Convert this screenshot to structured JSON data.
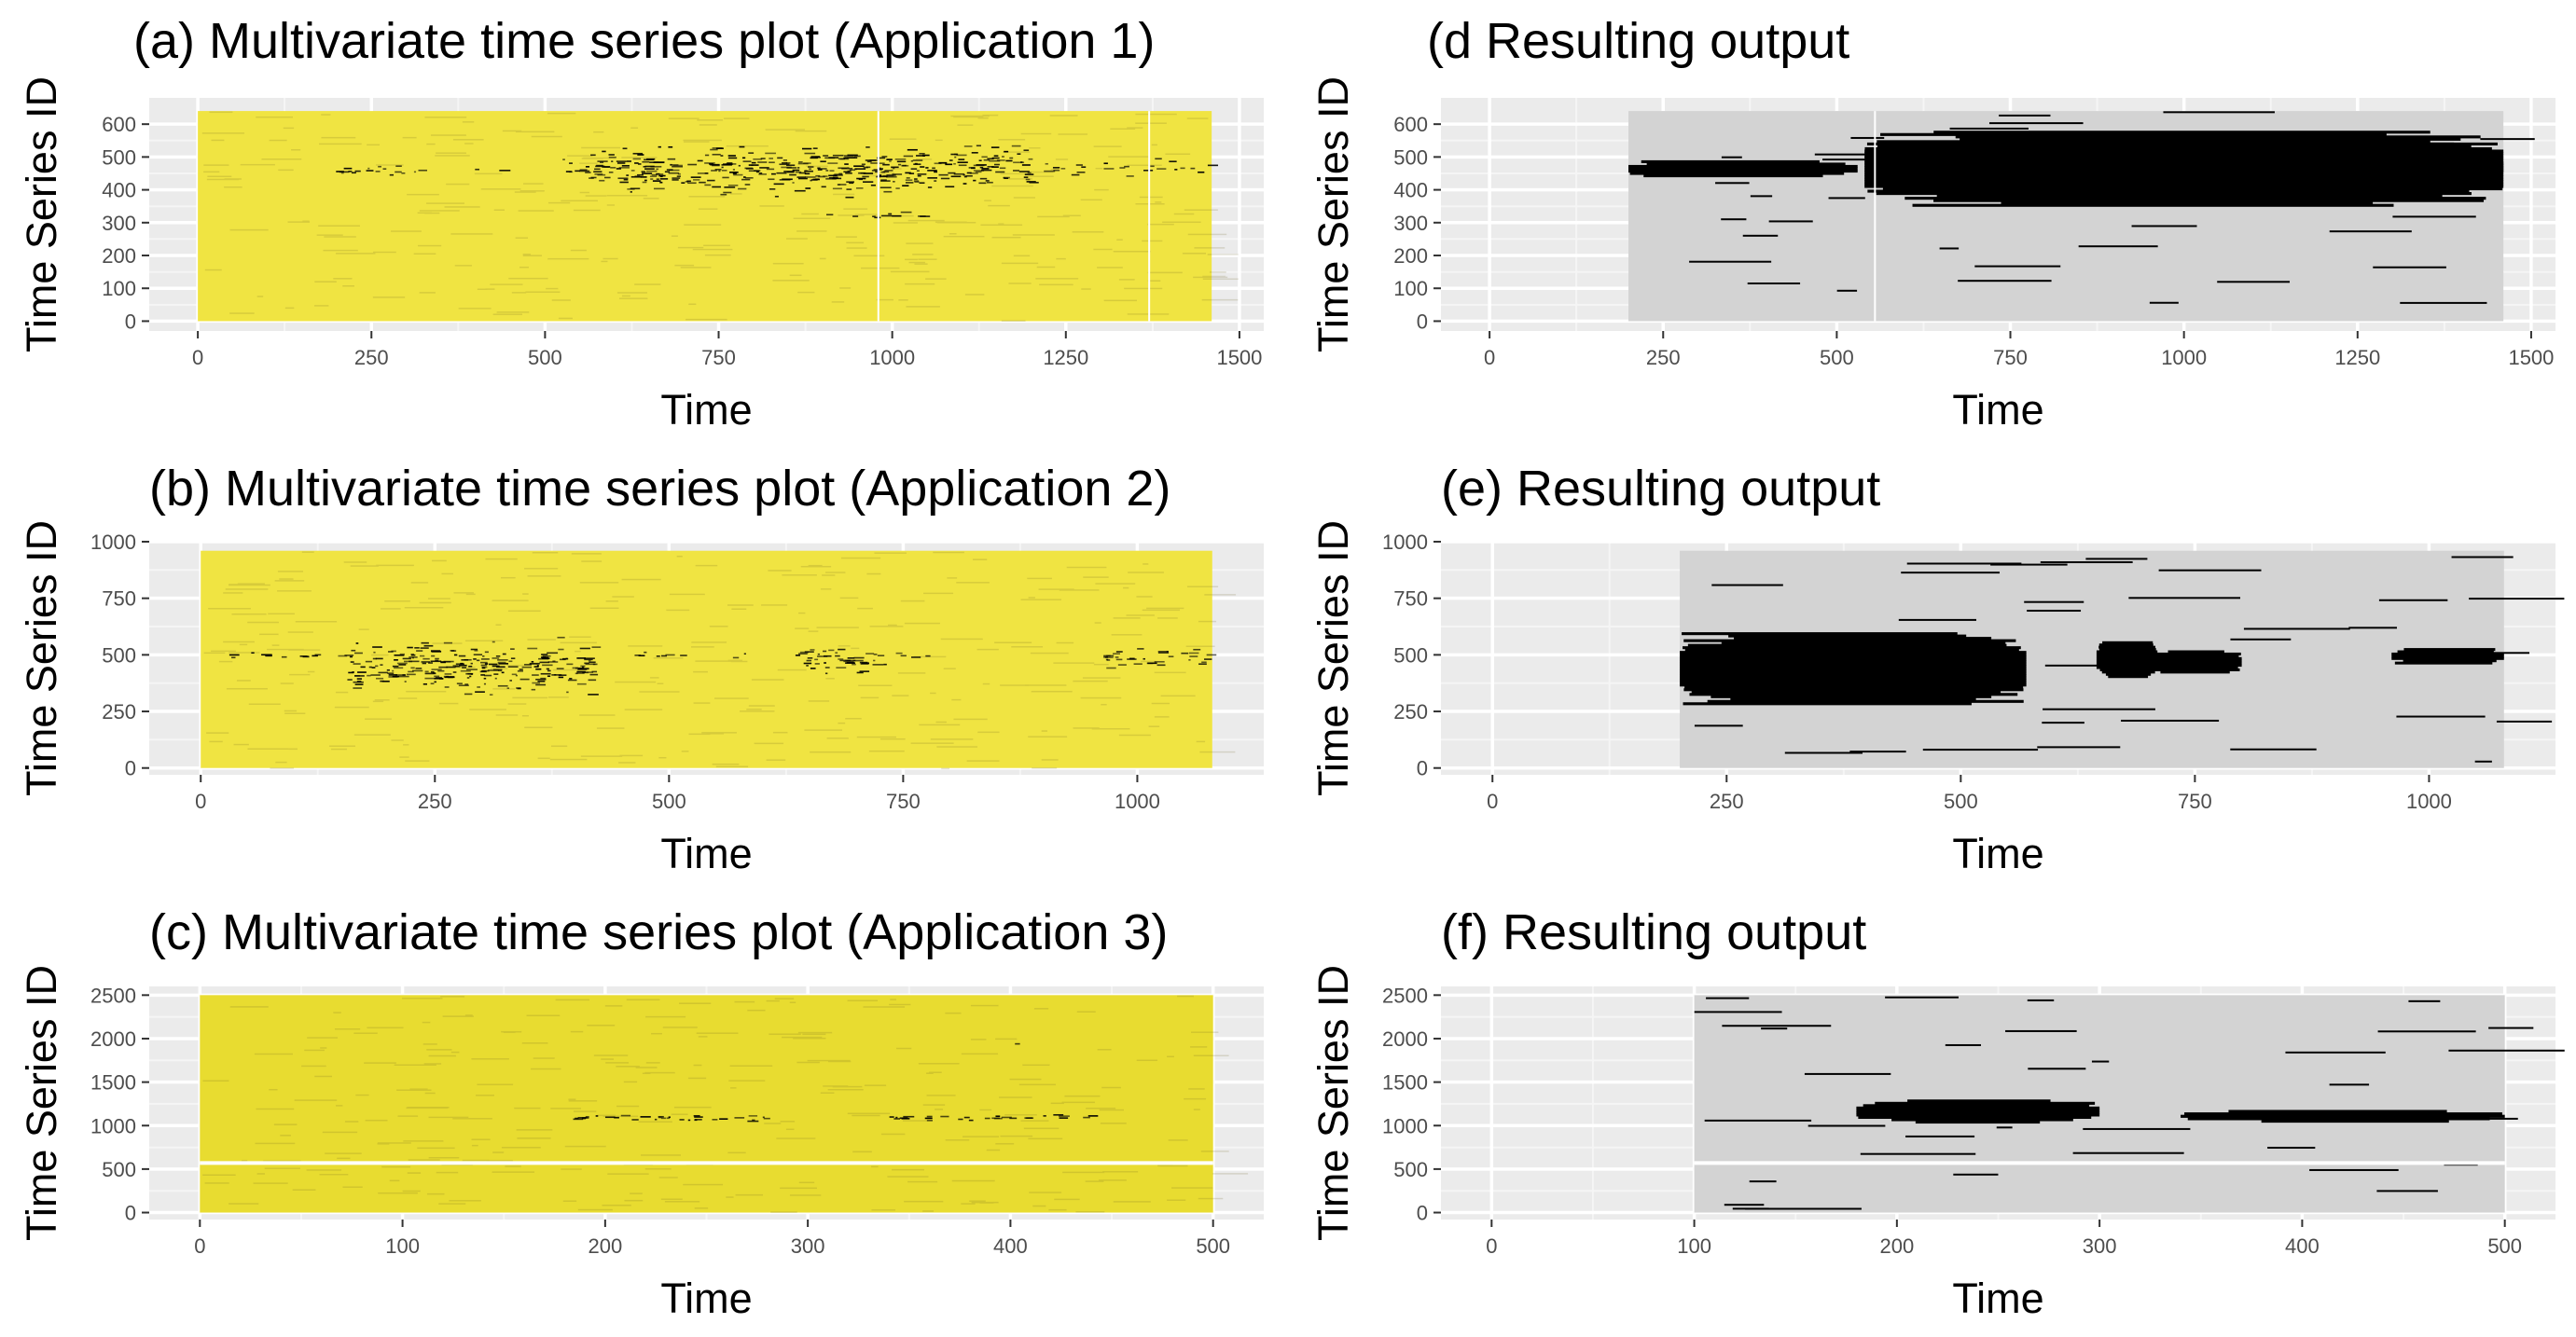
{
  "chart_data": [
    {
      "panel": "a",
      "type": "heatmap",
      "title": "(a) Multivariate time series plot (Application 1)",
      "xlabel": "Time",
      "ylabel": "Time Series ID",
      "xlim": [
        -70,
        1535
      ],
      "ylim": [
        -30,
        680
      ],
      "xticks": [
        0,
        250,
        500,
        750,
        1000,
        1250,
        1500
      ],
      "yticks": [
        0,
        100,
        200,
        300,
        400,
        500,
        600
      ],
      "extent": {
        "x": [
          0,
          1460
        ],
        "y": [
          0,
          640
        ]
      },
      "fill_color": "#f0e442",
      "ink_color": "#000000",
      "gaps_x": [
        980,
        1370
      ],
      "anomalies": [
        {
          "x": [
            195,
            300
          ],
          "y": [
            440,
            480
          ],
          "density": 0.85
        },
        {
          "x": [
            300,
            450
          ],
          "y": [
            450,
            470
          ],
          "density": 0.3
        },
        {
          "x": [
            525,
            610
          ],
          "y": [
            400,
            540
          ],
          "density": 0.7
        },
        {
          "x": [
            610,
            1000
          ],
          "y": [
            360,
            560
          ],
          "density": 0.8
        },
        {
          "x": [
            1000,
            1200
          ],
          "y": [
            380,
            560
          ],
          "density": 0.75
        },
        {
          "x": [
            1200,
            1460
          ],
          "y": [
            440,
            500
          ],
          "density": 0.35
        },
        {
          "x": [
            900,
            1100
          ],
          "y": [
            310,
            340
          ],
          "density": 0.4
        }
      ]
    },
    {
      "panel": "d",
      "type": "heatmap",
      "title": "(d Resulting output",
      "xlabel": "Time",
      "ylabel": "Time Series ID",
      "xlim": [
        -70,
        1535
      ],
      "ylim": [
        -30,
        680
      ],
      "xticks": [
        0,
        250,
        500,
        750,
        1000,
        1250,
        1500
      ],
      "yticks": [
        0,
        100,
        200,
        300,
        400,
        500,
        600
      ],
      "extent": {
        "x": [
          200,
          1460
        ],
        "y": [
          0,
          640
        ]
      },
      "fill_color": "#d3d3d3",
      "ink_color": "#000000",
      "gaps_x": [
        555
      ],
      "anomalies": [
        {
          "x": [
            200,
            530
          ],
          "y": [
            440,
            490
          ],
          "density": 1.0
        },
        {
          "x": [
            540,
            1460
          ],
          "y": [
            350,
            580
          ],
          "density": 1.0
        },
        {
          "x": [
            1200,
            1460
          ],
          "y": [
            440,
            500
          ],
          "density": 1.0
        }
      ]
    },
    {
      "panel": "b",
      "type": "heatmap",
      "title": "(b) Multivariate time series plot (Application 2)",
      "xlabel": "Time",
      "ylabel": "Time Series ID",
      "xlim": [
        -55,
        1135
      ],
      "ylim": [
        -30,
        1000
      ],
      "xticks": [
        0,
        250,
        500,
        750,
        1000
      ],
      "yticks": [
        0,
        250,
        500,
        750,
        1000
      ],
      "extent": {
        "x": [
          0,
          1080
        ],
        "y": [
          0,
          960
        ]
      },
      "fill_color": "#f0e442",
      "ink_color": "#000000",
      "gaps_x": [],
      "anomalies": [
        {
          "x": [
            25,
            160
          ],
          "y": [
            480,
            520
          ],
          "density": 0.6
        },
        {
          "x": [
            155,
            420
          ],
          "y": [
            300,
            600
          ],
          "density": 0.8
        },
        {
          "x": [
            420,
            600
          ],
          "y": [
            480,
            520
          ],
          "density": 0.3
        },
        {
          "x": [
            635,
            730
          ],
          "y": [
            400,
            560
          ],
          "density": 0.75
        },
        {
          "x": [
            730,
            800
          ],
          "y": [
            470,
            520
          ],
          "density": 0.3
        },
        {
          "x": [
            960,
            1080
          ],
          "y": [
            440,
            540
          ],
          "density": 0.7
        }
      ]
    },
    {
      "panel": "e",
      "type": "heatmap",
      "title": "(e) Resulting output",
      "xlabel": "Time",
      "ylabel": "Time Series ID",
      "xlim": [
        -55,
        1135
      ],
      "ylim": [
        -30,
        1000
      ],
      "xticks": [
        0,
        250,
        500,
        750,
        1000
      ],
      "yticks": [
        0,
        250,
        500,
        750,
        1000
      ],
      "extent": {
        "x": [
          200,
          1080
        ],
        "y": [
          0,
          960
        ]
      },
      "fill_color": "#d3d3d3",
      "ink_color": "#000000",
      "gaps_x": [],
      "anomalies": [
        {
          "x": [
            200,
            570
          ],
          "y": [
            280,
            600
          ],
          "density": 1.0
        },
        {
          "x": [
            645,
            710
          ],
          "y": [
            400,
            560
          ],
          "density": 1.0
        },
        {
          "x": [
            700,
            800
          ],
          "y": [
            420,
            520
          ],
          "density": 1.0
        },
        {
          "x": [
            960,
            1080
          ],
          "y": [
            460,
            530
          ],
          "density": 1.0
        }
      ]
    },
    {
      "panel": "c",
      "type": "heatmap",
      "title": "(c) Multivariate time series plot (Application 3)",
      "xlabel": "Time",
      "ylabel": "Time Series ID",
      "xlim": [
        -25,
        525
      ],
      "ylim": [
        -80,
        2600
      ],
      "xticks": [
        0,
        100,
        200,
        300,
        400,
        500
      ],
      "yticks": [
        0,
        500,
        1000,
        1500,
        2000,
        2500
      ],
      "extent": {
        "x": [
          0,
          500
        ],
        "y": [
          0,
          2500
        ]
      },
      "fill_color": "#e8dc30",
      "ink_color": "#000000",
      "gaps_y": [
        570
      ],
      "anomalies": [
        {
          "x": [
            180,
            280
          ],
          "y": [
            1050,
            1150
          ],
          "density": 0.95
        },
        {
          "x": [
            340,
            445
          ],
          "y": [
            1060,
            1140
          ],
          "density": 0.95
        },
        {
          "x": [
            400,
            420
          ],
          "y": [
            1940,
            1960
          ],
          "density": 0.6
        }
      ]
    },
    {
      "panel": "f",
      "type": "heatmap",
      "title": "(f) Resulting output",
      "xlabel": "Time",
      "ylabel": "Time Series ID",
      "xlim": [
        -25,
        525
      ],
      "ylim": [
        -80,
        2600
      ],
      "xticks": [
        0,
        100,
        200,
        300,
        400,
        500
      ],
      "yticks": [
        0,
        500,
        1000,
        1500,
        2000,
        2500
      ],
      "extent": {
        "x": [
          100,
          500
        ],
        "y": [
          0,
          2500
        ]
      },
      "fill_color": "#d3d3d3",
      "ink_color": "#000000",
      "gaps_y": [
        570
      ],
      "anomalies": [
        {
          "x": [
            180,
            300
          ],
          "y": [
            1030,
            1300
          ],
          "density": 1.0
        },
        {
          "x": [
            340,
            500
          ],
          "y": [
            1040,
            1180
          ],
          "density": 1.0
        }
      ]
    }
  ]
}
